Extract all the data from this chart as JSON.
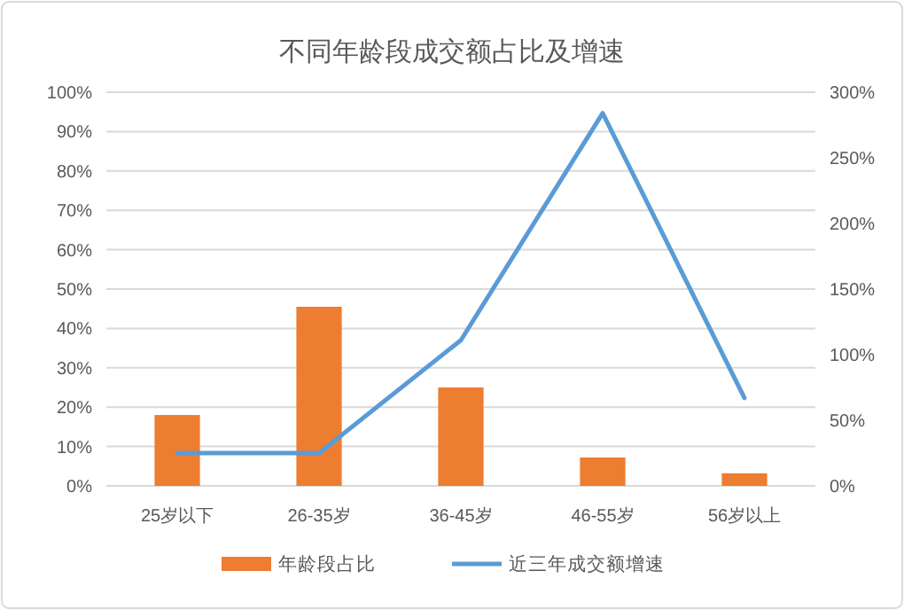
{
  "chart_data": {
    "type": "bar",
    "title": "不同年龄段成交额占比及增速",
    "categories": [
      "25岁以下",
      "26-35岁",
      "36-45岁",
      "46-55岁",
      "56岁以上"
    ],
    "series": [
      {
        "name": "年龄段占比",
        "color": "#ed7d31",
        "values": [
          18,
          45.5,
          25,
          7.2,
          3.2
        ]
      },
      {
        "name": "近三年成交额增速",
        "type": "line",
        "axis": "y2",
        "color": "#5b9bd5",
        "values": [
          25,
          25,
          111,
          284,
          67
        ]
      }
    ],
    "ylim": [
      0,
      100
    ],
    "yticks": [
      {
        "value": 0,
        "label": "0%"
      },
      {
        "value": 10,
        "label": "10%"
      },
      {
        "value": 20,
        "label": "20%"
      },
      {
        "value": 30,
        "label": "30%"
      },
      {
        "value": 40,
        "label": "40%"
      },
      {
        "value": 50,
        "label": "50%"
      },
      {
        "value": 60,
        "label": "60%"
      },
      {
        "value": 70,
        "label": "70%"
      },
      {
        "value": 80,
        "label": "80%"
      },
      {
        "value": 90,
        "label": "90%"
      },
      {
        "value": 100,
        "label": "100%"
      }
    ],
    "y2lim": [
      0,
      300
    ],
    "y2ticks": [
      {
        "value": 0,
        "label": "0%"
      },
      {
        "value": 50,
        "label": "50%"
      },
      {
        "value": 100,
        "label": "100%"
      },
      {
        "value": 150,
        "label": "150%"
      },
      {
        "value": 200,
        "label": "200%"
      },
      {
        "value": 250,
        "label": "250%"
      },
      {
        "value": 300,
        "label": "300%"
      }
    ],
    "grid": "y",
    "legend": "bottom",
    "marker": "none",
    "line_style": "solid"
  }
}
